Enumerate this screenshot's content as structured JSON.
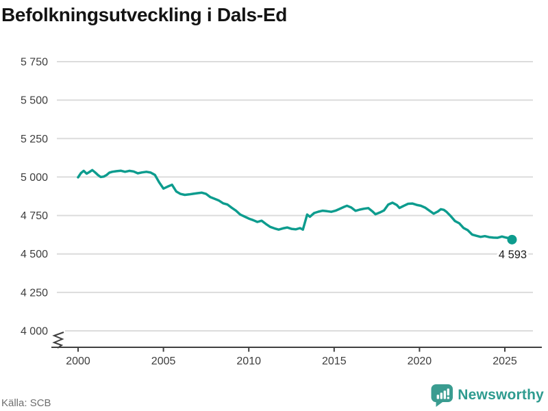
{
  "title": "Befolkningsutveckling i Dals-Ed",
  "footer": {
    "source": "Källa: SCB",
    "logo_text": "Newsworthy"
  },
  "colors": {
    "line": "#0d9c8e",
    "grid": "#dcdcdc",
    "axis": "#3f3f3f",
    "tick_text": "#3d3d3d",
    "title_text": "#141414",
    "source_text": "#6e6e6e",
    "logo": "#3a9c90",
    "logo_text": "#2e9b8f",
    "end_label_text": "#1c1c1c"
  },
  "chart_data": {
    "type": "line",
    "title": "Befolkningsutveckling i Dals-Ed",
    "xlabel": "",
    "ylabel": "",
    "grid": "horizontal",
    "legend": false,
    "y_axis_break": true,
    "ylim": [
      4000,
      5750
    ],
    "xlim": [
      1998.4,
      2027.5
    ],
    "x_tick_values": [
      2000,
      2005,
      2010,
      2015,
      2020,
      2025
    ],
    "x_tick_labels": [
      "2000",
      "2005",
      "2010",
      "2015",
      "2020",
      "2025"
    ],
    "y_tick_values": [
      4000,
      4250,
      4500,
      4750,
      5000,
      5250,
      5500,
      5750
    ],
    "y_tick_labels": [
      "4 000",
      "4 250",
      "4 500",
      "4 750",
      "5 000",
      "5 250",
      "5 500",
      "5 750"
    ],
    "end_point": {
      "x": 2025.42,
      "y": 4593,
      "label": "4 593"
    },
    "series": [
      {
        "name": "population",
        "points": [
          [
            2000.0,
            4998
          ],
          [
            2000.17,
            5026
          ],
          [
            2000.33,
            5040
          ],
          [
            2000.5,
            5022
          ],
          [
            2000.67,
            5033
          ],
          [
            2000.83,
            5045
          ],
          [
            2001.0,
            5030
          ],
          [
            2001.17,
            5012
          ],
          [
            2001.33,
            5000
          ],
          [
            2001.5,
            5003
          ],
          [
            2001.67,
            5013
          ],
          [
            2001.83,
            5028
          ],
          [
            2002.0,
            5034
          ],
          [
            2002.25,
            5038
          ],
          [
            2002.5,
            5041
          ],
          [
            2002.75,
            5034
          ],
          [
            2003.0,
            5040
          ],
          [
            2003.25,
            5036
          ],
          [
            2003.5,
            5024
          ],
          [
            2003.75,
            5030
          ],
          [
            2004.0,
            5034
          ],
          [
            2004.25,
            5029
          ],
          [
            2004.5,
            5014
          ],
          [
            2004.75,
            4965
          ],
          [
            2005.0,
            4925
          ],
          [
            2005.25,
            4938
          ],
          [
            2005.5,
            4950
          ],
          [
            2005.75,
            4906
          ],
          [
            2006.0,
            4890
          ],
          [
            2006.25,
            4884
          ],
          [
            2006.5,
            4887
          ],
          [
            2006.75,
            4891
          ],
          [
            2007.0,
            4895
          ],
          [
            2007.25,
            4898
          ],
          [
            2007.5,
            4890
          ],
          [
            2007.75,
            4869
          ],
          [
            2008.0,
            4858
          ],
          [
            2008.25,
            4847
          ],
          [
            2008.5,
            4829
          ],
          [
            2008.75,
            4821
          ],
          [
            2009.0,
            4800
          ],
          [
            2009.25,
            4781
          ],
          [
            2009.5,
            4756
          ],
          [
            2009.75,
            4743
          ],
          [
            2010.0,
            4730
          ],
          [
            2010.25,
            4720
          ],
          [
            2010.5,
            4708
          ],
          [
            2010.75,
            4716
          ],
          [
            2011.0,
            4695
          ],
          [
            2011.25,
            4676
          ],
          [
            2011.5,
            4666
          ],
          [
            2011.75,
            4658
          ],
          [
            2012.0,
            4666
          ],
          [
            2012.25,
            4672
          ],
          [
            2012.5,
            4663
          ],
          [
            2012.75,
            4660
          ],
          [
            2013.0,
            4668
          ],
          [
            2013.17,
            4658
          ],
          [
            2013.42,
            4756
          ],
          [
            2013.58,
            4742
          ],
          [
            2013.83,
            4766
          ],
          [
            2014.08,
            4775
          ],
          [
            2014.33,
            4781
          ],
          [
            2014.58,
            4778
          ],
          [
            2014.83,
            4774
          ],
          [
            2015.08,
            4781
          ],
          [
            2015.33,
            4793
          ],
          [
            2015.58,
            4806
          ],
          [
            2015.75,
            4813
          ],
          [
            2016.0,
            4802
          ],
          [
            2016.25,
            4780
          ],
          [
            2016.5,
            4788
          ],
          [
            2016.75,
            4794
          ],
          [
            2017.0,
            4798
          ],
          [
            2017.25,
            4776
          ],
          [
            2017.42,
            4758
          ],
          [
            2017.67,
            4769
          ],
          [
            2017.92,
            4783
          ],
          [
            2018.17,
            4821
          ],
          [
            2018.42,
            4833
          ],
          [
            2018.67,
            4818
          ],
          [
            2018.83,
            4799
          ],
          [
            2019.08,
            4813
          ],
          [
            2019.33,
            4826
          ],
          [
            2019.58,
            4828
          ],
          [
            2019.83,
            4819
          ],
          [
            2020.08,
            4813
          ],
          [
            2020.33,
            4801
          ],
          [
            2020.58,
            4781
          ],
          [
            2020.83,
            4762
          ],
          [
            2021.08,
            4776
          ],
          [
            2021.25,
            4791
          ],
          [
            2021.42,
            4787
          ],
          [
            2021.58,
            4774
          ],
          [
            2021.83,
            4746
          ],
          [
            2022.08,
            4714
          ],
          [
            2022.33,
            4699
          ],
          [
            2022.58,
            4669
          ],
          [
            2022.83,
            4654
          ],
          [
            2023.08,
            4626
          ],
          [
            2023.33,
            4618
          ],
          [
            2023.58,
            4611
          ],
          [
            2023.83,
            4616
          ],
          [
            2024.08,
            4609
          ],
          [
            2024.33,
            4606
          ],
          [
            2024.58,
            4605
          ],
          [
            2024.83,
            4613
          ],
          [
            2025.08,
            4606
          ],
          [
            2025.33,
            4601
          ],
          [
            2025.42,
            4593
          ]
        ]
      }
    ]
  }
}
